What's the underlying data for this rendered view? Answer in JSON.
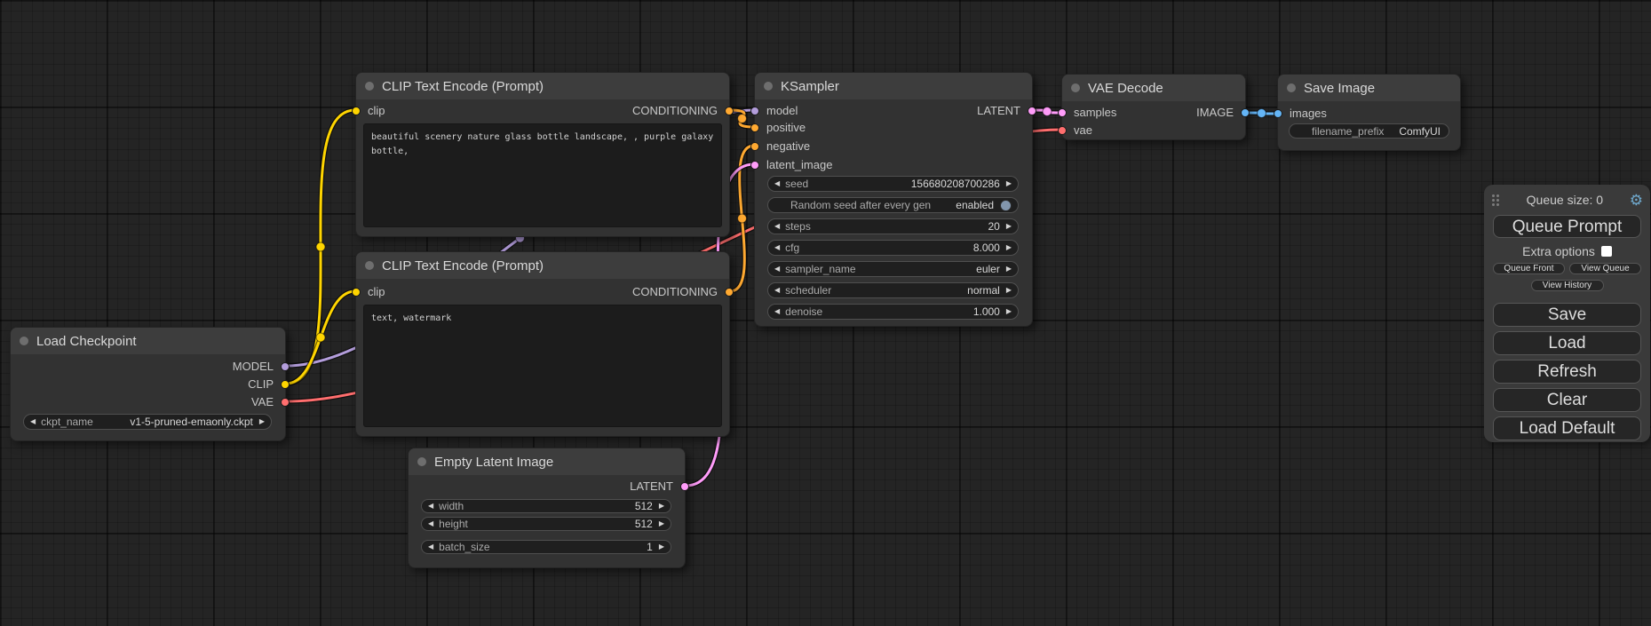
{
  "colors": {
    "MODEL": "#b39ddb",
    "CLIP": "#ffd500",
    "VAE": "#ff6e6e",
    "CONDITIONING": "#ffa931",
    "LATENT": "#ff9cf9",
    "IMAGE": "#64b5f6",
    "gear_accent": "#6fa8cc",
    "toggle_dot": "#8296ad"
  },
  "icons": {
    "arrow_left": "◀",
    "arrow_right": "▶",
    "gear": "⚙"
  },
  "nodes": {
    "load_checkpoint": {
      "title": "Load Checkpoint",
      "outputs": [
        "MODEL",
        "CLIP",
        "VAE"
      ],
      "widgets": [
        {
          "label": "ckpt_name",
          "value": "v1-5-pruned-emaonly.ckpt"
        }
      ]
    },
    "clip1": {
      "title": "CLIP Text Encode (Prompt)",
      "inputs": [
        "clip"
      ],
      "outputs": [
        "CONDITIONING"
      ],
      "text": "beautiful scenery nature glass bottle landscape, , purple galaxy bottle,"
    },
    "clip2": {
      "title": "CLIP Text Encode (Prompt)",
      "inputs": [
        "clip"
      ],
      "outputs": [
        "CONDITIONING"
      ],
      "text": "text, watermark"
    },
    "ksampler": {
      "title": "KSampler",
      "inputs": [
        "model",
        "positive",
        "negative",
        "latent_image"
      ],
      "outputs": [
        "LATENT"
      ],
      "widgets": [
        {
          "label": "seed",
          "value": "156680208700286"
        },
        {
          "label": "Random seed after every gen",
          "value": "enabled"
        },
        {
          "label": "steps",
          "value": "20"
        },
        {
          "label": "cfg",
          "value": "8.000"
        },
        {
          "label": "sampler_name",
          "value": "euler"
        },
        {
          "label": "scheduler",
          "value": "normal"
        },
        {
          "label": "denoise",
          "value": "1.000"
        }
      ]
    },
    "vae_decode": {
      "title": "VAE Decode",
      "inputs": [
        "samples",
        "vae"
      ],
      "outputs": [
        "IMAGE"
      ]
    },
    "save_image": {
      "title": "Save Image",
      "inputs": [
        "images"
      ],
      "widgets": [
        {
          "label": "filename_prefix",
          "value": "ComfyUI"
        }
      ]
    },
    "empty_latent": {
      "title": "Empty Latent Image",
      "outputs": [
        "LATENT"
      ],
      "widgets": [
        {
          "label": "width",
          "value": "512"
        },
        {
          "label": "height",
          "value": "512"
        },
        {
          "label": "batch_size",
          "value": "1"
        }
      ]
    }
  },
  "links": [
    {
      "from": "load_checkpoint.MODEL",
      "to": "ksampler.model",
      "type": "MODEL"
    },
    {
      "from": "load_checkpoint.CLIP",
      "to": "clip1.clip",
      "type": "CLIP"
    },
    {
      "from": "load_checkpoint.CLIP",
      "to": "clip2.clip",
      "type": "CLIP"
    },
    {
      "from": "load_checkpoint.VAE",
      "to": "vae_decode.vae",
      "type": "VAE"
    },
    {
      "from": "clip1.CONDITIONING",
      "to": "ksampler.positive",
      "type": "CONDITIONING"
    },
    {
      "from": "clip2.CONDITIONING",
      "to": "ksampler.negative",
      "type": "CONDITIONING"
    },
    {
      "from": "empty_latent.LATENT",
      "to": "ksampler.latent_image",
      "type": "LATENT"
    },
    {
      "from": "ksampler.LATENT",
      "to": "vae_decode.samples",
      "type": "LATENT"
    },
    {
      "from": "vae_decode.IMAGE",
      "to": "save_image.images",
      "type": "IMAGE"
    }
  ],
  "queue_panel": {
    "queue_size": "Queue size: 0",
    "queue_prompt": "Queue Prompt",
    "extra_options": "Extra options",
    "queue_front": "Queue Front",
    "view_queue": "View Queue",
    "view_history": "View History",
    "save": "Save",
    "load": "Load",
    "refresh": "Refresh",
    "clear": "Clear",
    "load_default": "Load Default"
  }
}
